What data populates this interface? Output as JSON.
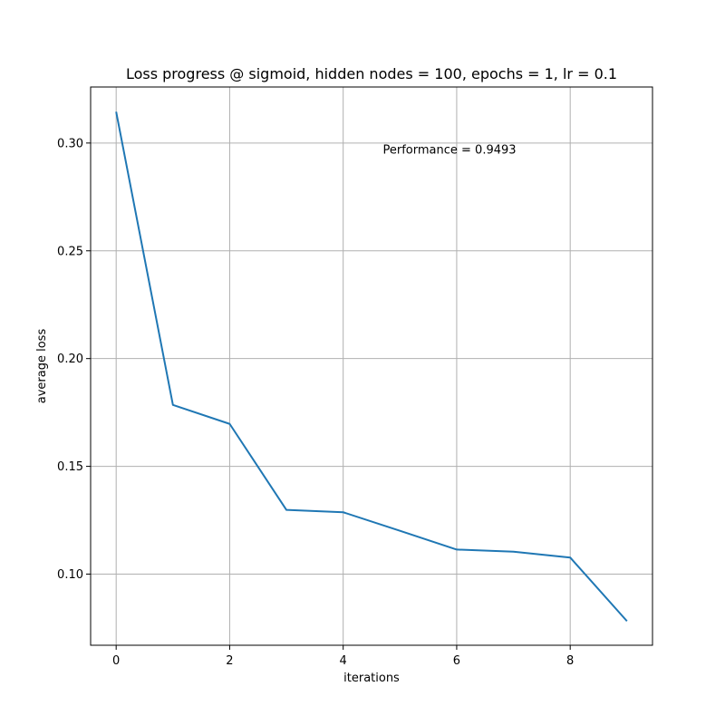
{
  "chart_data": {
    "type": "line",
    "title": "Loss progress @ sigmoid, hidden nodes = 100, epochs = 1, lr = 0.1",
    "xlabel": "iterations",
    "ylabel": "average loss",
    "xlim": [
      -0.45,
      9.45
    ],
    "ylim": [
      0.067,
      0.326
    ],
    "xticks": [
      0,
      2,
      4,
      6,
      8
    ],
    "xtick_labels": [
      "0",
      "2",
      "4",
      "6",
      "8"
    ],
    "yticks": [
      0.1,
      0.15,
      0.2,
      0.25,
      0.3
    ],
    "ytick_labels": [
      "0.10",
      "0.15",
      "0.20",
      "0.25",
      "0.30"
    ],
    "grid": true,
    "series": [
      {
        "x": [
          0,
          1,
          2,
          3,
          4,
          5,
          6,
          7,
          8,
          9
        ],
        "values": [
          0.3145,
          0.1785,
          0.1697,
          0.1298,
          0.1287,
          0.1201,
          0.1114,
          0.1104,
          0.1077,
          0.0782
        ],
        "color": "#1f77b4"
      }
    ],
    "annotations": [
      {
        "text": "Performance = 0.9493",
        "x": 4.7,
        "y": 0.295
      }
    ]
  }
}
